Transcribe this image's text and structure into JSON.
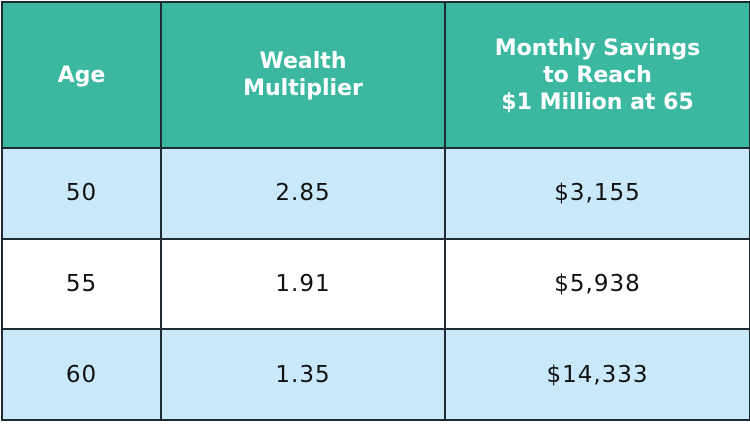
{
  "table": {
    "header": [
      [
        "Age"
      ],
      [
        "Wealth",
        "Multiplier"
      ],
      [
        "Monthly Savings",
        "to Reach",
        "$1 Million at 65"
      ]
    ],
    "rows": [
      [
        "50",
        "2.85",
        "$3,155"
      ],
      [
        "55",
        "1.91",
        "$5,938"
      ],
      [
        "60",
        "1.35",
        "$14,333"
      ]
    ]
  }
}
